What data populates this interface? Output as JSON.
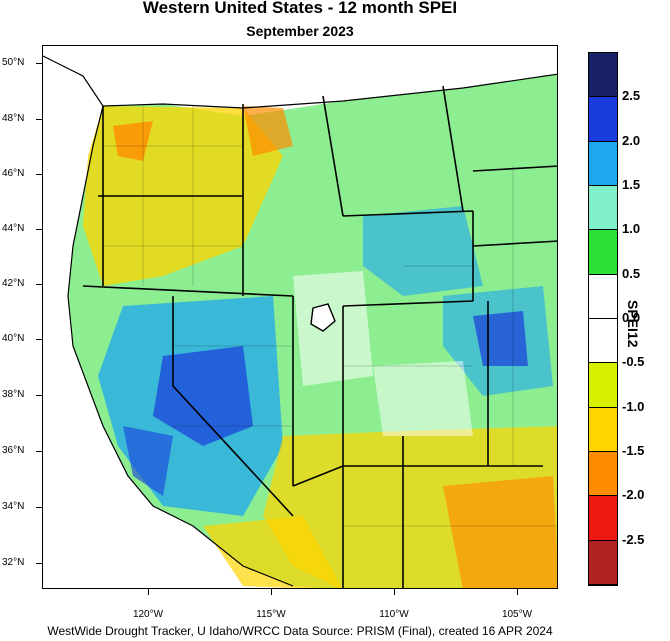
{
  "title": "Western United States - 12 month SPEI",
  "subtitle": "September 2023",
  "footer": "WestWide Drought Tracker, U Idaho/WRCC Data Source: PRISM (Final), created 16 APR 2024",
  "lat_labels": [
    "50°N",
    "48°N",
    "46°N",
    "44°N",
    "42°N",
    "40°N",
    "38°N",
    "36°N",
    "34°N",
    "32°N"
  ],
  "lon_labels": [
    "120°W",
    "115°W",
    "110°W",
    "105°W"
  ],
  "colorbar": {
    "title": "SPEI12",
    "tick_labels": [
      "2.5",
      "2.0",
      "1.5",
      "1.0",
      "0.5",
      "0.0",
      "-0.5",
      "-1.0",
      "-1.5",
      "-2.0",
      "-2.5"
    ],
    "bins": [
      {
        "range": ">2.5",
        "color": "#1a2266"
      },
      {
        "range": "2.0–2.5",
        "color": "#1a3cdc"
      },
      {
        "range": "1.5–2.0",
        "color": "#1ea6f0"
      },
      {
        "range": "1.0–1.5",
        "color": "#7ff0c8"
      },
      {
        "range": "0.5–1.0",
        "color": "#2ee036"
      },
      {
        "range": "0.0–0.5",
        "color": "#ffffff"
      },
      {
        "range": "-0.5–0.0",
        "color": "#ffffff"
      },
      {
        "range": "-1.0–-0.5",
        "color": "#d8f000"
      },
      {
        "range": "-1.5–-1.0",
        "color": "#ffd400"
      },
      {
        "range": "-2.0–-1.5",
        "color": "#ff8c00"
      },
      {
        "range": "-2.5–-2.0",
        "color": "#ee1a10"
      },
      {
        "range": "<-2.5",
        "color": "#b22222"
      }
    ]
  }
}
